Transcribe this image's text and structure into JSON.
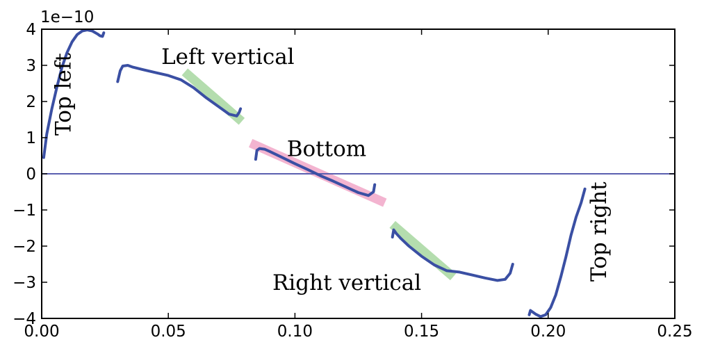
{
  "chart_data": {
    "type": "line",
    "title": "",
    "xlabel": "",
    "ylabel": "",
    "xlim": [
      0.0,
      0.25
    ],
    "ylim": [
      -4,
      4
    ],
    "y_scale_label": "1e−10",
    "x_ticks": [
      0.0,
      0.05,
      0.1,
      0.15,
      0.2,
      0.25
    ],
    "x_tick_labels": [
      "0.00",
      "0.05",
      "0.10",
      "0.15",
      "0.20",
      "0.25"
    ],
    "y_ticks": [
      4,
      3,
      2,
      1,
      0,
      -1,
      -2,
      -3,
      -4
    ],
    "y_tick_labels": [
      "4",
      "3",
      "2",
      "1",
      "0",
      "−1",
      "−2",
      "−3",
      "−4"
    ],
    "zero_line": true,
    "grid": false,
    "colors": {
      "curve": "#3a4fa3",
      "zero_line": "#5a5fb0",
      "left_vertical_band": "#a8d8a0",
      "bottom_band": "#f2a8c8",
      "right_vertical_band": "#a8d8a0"
    },
    "series": [
      {
        "x": [
          0.0008,
          0.002,
          0.004,
          0.006,
          0.008,
          0.01,
          0.012,
          0.014,
          0.016,
          0.018,
          0.02,
          0.022,
          0.023,
          0.024,
          0.0245
        ],
        "y": [
          0.45,
          1.1,
          1.8,
          2.4,
          2.95,
          3.35,
          3.65,
          3.85,
          3.95,
          3.98,
          3.95,
          3.87,
          3.82,
          3.8,
          3.9
        ]
      },
      {
        "x": [
          0.03,
          0.031,
          0.032,
          0.034,
          0.036,
          0.04,
          0.045,
          0.05,
          0.055,
          0.06,
          0.065,
          0.07,
          0.074,
          0.077,
          0.078,
          0.0785
        ],
        "y": [
          2.55,
          2.85,
          2.98,
          3.0,
          2.95,
          2.88,
          2.8,
          2.72,
          2.6,
          2.38,
          2.1,
          1.85,
          1.65,
          1.6,
          1.7,
          1.8
        ]
      },
      {
        "x": [
          0.0845,
          0.085,
          0.086,
          0.088,
          0.09,
          0.095,
          0.1,
          0.105,
          0.11,
          0.115,
          0.12,
          0.125,
          0.129,
          0.131,
          0.1315
        ],
        "y": [
          0.4,
          0.65,
          0.7,
          0.68,
          0.62,
          0.45,
          0.28,
          0.12,
          -0.05,
          -0.2,
          -0.36,
          -0.52,
          -0.6,
          -0.5,
          -0.3
        ]
      },
      {
        "x": [
          0.1385,
          0.139,
          0.14,
          0.142,
          0.145,
          0.15,
          0.155,
          0.16,
          0.165,
          0.17,
          0.175,
          0.18,
          0.183,
          0.185,
          0.186
        ],
        "y": [
          -1.75,
          -1.55,
          -1.65,
          -1.8,
          -2.0,
          -2.28,
          -2.52,
          -2.68,
          -2.72,
          -2.8,
          -2.88,
          -2.95,
          -2.92,
          -2.75,
          -2.5
        ]
      },
      {
        "x": [
          0.1925,
          0.193,
          0.195,
          0.197,
          0.199,
          0.201,
          0.203,
          0.205,
          0.207,
          0.209,
          0.211,
          0.213,
          0.2145
        ],
        "y": [
          -3.9,
          -3.78,
          -3.88,
          -3.95,
          -3.9,
          -3.7,
          -3.35,
          -2.85,
          -2.3,
          -1.7,
          -1.2,
          -0.8,
          -0.42
        ]
      }
    ],
    "highlight_bands": [
      {
        "x": [
          0.0565,
          0.079
        ],
        "y": [
          2.82,
          1.45
        ],
        "color_key": "left_vertical_band"
      },
      {
        "x": [
          0.0825,
          0.1355
        ],
        "y": [
          0.85,
          -0.8
        ],
        "color_key": "bottom_band"
      },
      {
        "x": [
          0.1385,
          0.1625
        ],
        "y": [
          -1.4,
          -2.85
        ],
        "color_key": "right_vertical_band"
      }
    ],
    "annotations": [
      {
        "text": "Top left",
        "x": 0.009,
        "y": 2.2,
        "rotation": -90
      },
      {
        "text": "Left vertical",
        "x": 0.0735,
        "y": 3.2,
        "rotation": 0
      },
      {
        "text": "Bottom",
        "x": 0.1125,
        "y": 0.65,
        "rotation": 0
      },
      {
        "text": "Right vertical",
        "x": 0.1205,
        "y": -3.05,
        "rotation": 0
      },
      {
        "text": "Top right",
        "x": 0.2205,
        "y": -1.6,
        "rotation": -90
      }
    ]
  }
}
